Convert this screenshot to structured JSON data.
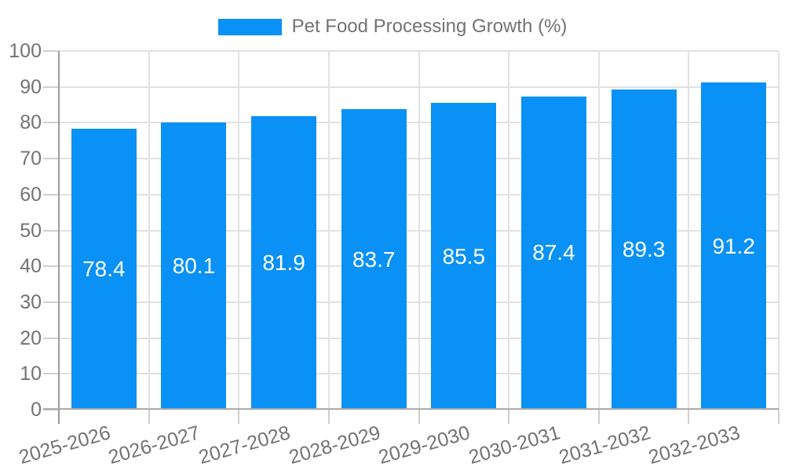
{
  "chart_data": {
    "type": "bar",
    "title": "Pet Food Processing Growth (%)",
    "categories": [
      "2025-2026",
      "2026-2027",
      "2027-2028",
      "2028-2029",
      "2029-2030",
      "2030-2031",
      "2031-2032",
      "2032-2033"
    ],
    "series": [
      {
        "name": "Pet Food Processing Growth (%)",
        "values": [
          78.4,
          80.1,
          81.9,
          83.7,
          85.5,
          87.4,
          89.3,
          91.2
        ],
        "color": "#0a91f5"
      }
    ],
    "value_labels": [
      "78.4",
      "80.1",
      "81.9",
      "83.7",
      "85.5",
      "87.4",
      "89.3",
      "91.2"
    ],
    "xlabel": "",
    "ylabel": "",
    "ylim": [
      0,
      100
    ],
    "ytick_step": 10,
    "yticks": [
      0,
      10,
      20,
      30,
      40,
      50,
      60,
      70,
      80,
      90,
      100
    ],
    "grid": "on",
    "legend": {
      "label": "Pet Food Processing Growth (%)",
      "position": "top-center"
    },
    "x_tick_rotation_deg": -16,
    "colors": {
      "bar": "#0a91f5",
      "value_label_text": "#ffffff",
      "axis_text": "#737373",
      "grid_line": "#e2e2e2",
      "axis_line": "#9a9a9a",
      "baseline": "#ababab",
      "tick_mark": "#cfcfcf",
      "background": "#ffffff"
    }
  }
}
